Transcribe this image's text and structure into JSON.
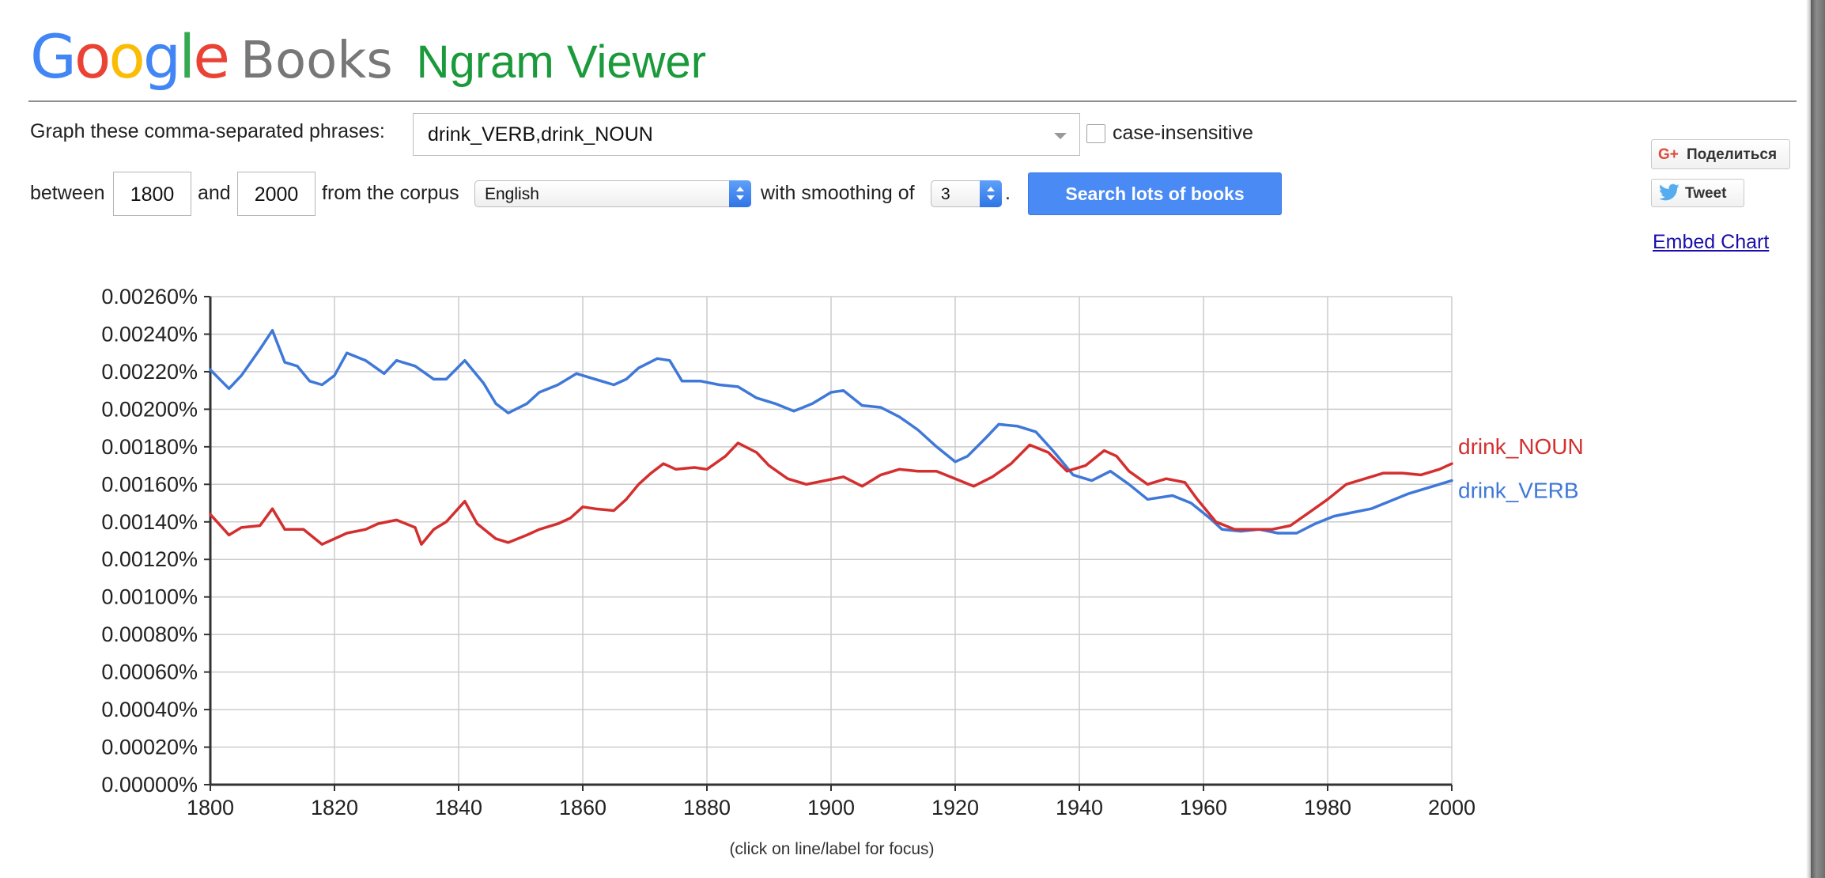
{
  "header": {
    "logo_google_letters": [
      {
        "ch": "G",
        "color": "blue"
      },
      {
        "ch": "o",
        "color": "red"
      },
      {
        "ch": "o",
        "color": "yellow"
      },
      {
        "ch": "g",
        "color": "blue"
      },
      {
        "ch": "l",
        "color": "green"
      },
      {
        "ch": "e",
        "color": "red"
      }
    ],
    "logo_books": "Books",
    "title": "Ngram Viewer"
  },
  "form": {
    "phrases_label": "Graph these comma-separated phrases:",
    "phrases_value": "drink_VERB,drink_NOUN",
    "case_insensitive_label": "case-insensitive",
    "case_insensitive_checked": false,
    "between_label": "between",
    "start_year": "1800",
    "and_label": "and",
    "end_year": "2000",
    "corpus_label": "from the corpus",
    "corpus_value": "English",
    "smoothing_label": "with smoothing of",
    "smoothing_value": "3",
    "period": ".",
    "search_button": "Search lots of books"
  },
  "sidebar": {
    "share_label": "Поделиться",
    "share_icon_text": "G+",
    "tweet_label": "Tweet",
    "embed_link": "Embed Chart"
  },
  "colors": {
    "google_blue": "#4285f4",
    "google_red": "#ea4335",
    "google_yellow": "#fbbc05",
    "google_green": "#34a853",
    "title_green": "#1a9a3a",
    "button_blue": "#4a8af4",
    "series_verb": "#3f78d8",
    "series_noun": "#d32f2f"
  },
  "chart_data": {
    "type": "line",
    "footnote": "(click on line/label for focus)",
    "xlim": [
      1800,
      2000
    ],
    "ylim": [
      0,
      0.0026
    ],
    "y_unit": "%",
    "x_ticks": [
      "1800",
      "1820",
      "1840",
      "1860",
      "1880",
      "1900",
      "1920",
      "1940",
      "1960",
      "1980",
      "2000"
    ],
    "y_ticks": [
      "0.00000%",
      "0.00020%",
      "0.00040%",
      "0.00060%",
      "0.00080%",
      "0.00100%",
      "0.00120%",
      "0.00140%",
      "0.00160%",
      "0.00180%",
      "0.00200%",
      "0.00220%",
      "0.00240%",
      "0.00260%"
    ],
    "grid": true,
    "legend": "line-end labels",
    "series": [
      {
        "name": "drink_VERB",
        "color": "#3f78d8",
        "points": [
          [
            1800,
            0.00221
          ],
          [
            1803,
            0.00211
          ],
          [
            1805,
            0.00218
          ],
          [
            1808,
            0.00232
          ],
          [
            1810,
            0.00242
          ],
          [
            1812,
            0.00225
          ],
          [
            1814,
            0.00223
          ],
          [
            1816,
            0.00215
          ],
          [
            1818,
            0.00213
          ],
          [
            1820,
            0.00218
          ],
          [
            1822,
            0.0023
          ],
          [
            1825,
            0.00226
          ],
          [
            1828,
            0.00219
          ],
          [
            1830,
            0.00226
          ],
          [
            1833,
            0.00223
          ],
          [
            1836,
            0.00216
          ],
          [
            1838,
            0.00216
          ],
          [
            1841,
            0.00226
          ],
          [
            1844,
            0.00214
          ],
          [
            1846,
            0.00203
          ],
          [
            1848,
            0.00198
          ],
          [
            1851,
            0.00203
          ],
          [
            1853,
            0.00209
          ],
          [
            1856,
            0.00213
          ],
          [
            1859,
            0.00219
          ],
          [
            1862,
            0.00216
          ],
          [
            1865,
            0.00213
          ],
          [
            1867,
            0.00216
          ],
          [
            1869,
            0.00222
          ],
          [
            1872,
            0.00227
          ],
          [
            1874,
            0.00226
          ],
          [
            1876,
            0.00215
          ],
          [
            1879,
            0.00215
          ],
          [
            1882,
            0.00213
          ],
          [
            1885,
            0.00212
          ],
          [
            1888,
            0.00206
          ],
          [
            1891,
            0.00203
          ],
          [
            1894,
            0.00199
          ],
          [
            1897,
            0.00203
          ],
          [
            1900,
            0.00209
          ],
          [
            1902,
            0.0021
          ],
          [
            1905,
            0.00202
          ],
          [
            1908,
            0.00201
          ],
          [
            1911,
            0.00196
          ],
          [
            1914,
            0.00189
          ],
          [
            1917,
            0.0018
          ],
          [
            1920,
            0.00172
          ],
          [
            1922,
            0.00175
          ],
          [
            1925,
            0.00185
          ],
          [
            1927,
            0.00192
          ],
          [
            1930,
            0.00191
          ],
          [
            1933,
            0.00188
          ],
          [
            1936,
            0.00177
          ],
          [
            1939,
            0.00165
          ],
          [
            1942,
            0.00162
          ],
          [
            1945,
            0.00167
          ],
          [
            1948,
            0.0016
          ],
          [
            1951,
            0.00152
          ],
          [
            1955,
            0.00154
          ],
          [
            1958,
            0.0015
          ],
          [
            1961,
            0.00142
          ],
          [
            1963,
            0.00136
          ],
          [
            1966,
            0.00135
          ],
          [
            1969,
            0.00136
          ],
          [
            1972,
            0.00134
          ],
          [
            1975,
            0.00134
          ],
          [
            1978,
            0.00139
          ],
          [
            1981,
            0.00143
          ],
          [
            1984,
            0.00145
          ],
          [
            1987,
            0.00147
          ],
          [
            1990,
            0.00151
          ],
          [
            1993,
            0.00155
          ],
          [
            1996,
            0.00158
          ],
          [
            1998,
            0.0016
          ],
          [
            2000,
            0.00162
          ]
        ]
      },
      {
        "name": "drink_NOUN",
        "color": "#d32f2f",
        "points": [
          [
            1800,
            0.00144
          ],
          [
            1803,
            0.00133
          ],
          [
            1805,
            0.00137
          ],
          [
            1808,
            0.00138
          ],
          [
            1810,
            0.00147
          ],
          [
            1812,
            0.00136
          ],
          [
            1815,
            0.00136
          ],
          [
            1818,
            0.00128
          ],
          [
            1820,
            0.00131
          ],
          [
            1822,
            0.00134
          ],
          [
            1825,
            0.00136
          ],
          [
            1827,
            0.00139
          ],
          [
            1830,
            0.00141
          ],
          [
            1833,
            0.00137
          ],
          [
            1834,
            0.00128
          ],
          [
            1836,
            0.00136
          ],
          [
            1838,
            0.0014
          ],
          [
            1841,
            0.00151
          ],
          [
            1843,
            0.00139
          ],
          [
            1846,
            0.00131
          ],
          [
            1848,
            0.00129
          ],
          [
            1851,
            0.00133
          ],
          [
            1853,
            0.00136
          ],
          [
            1856,
            0.00139
          ],
          [
            1858,
            0.00142
          ],
          [
            1860,
            0.00148
          ],
          [
            1862,
            0.00147
          ],
          [
            1865,
            0.00146
          ],
          [
            1867,
            0.00152
          ],
          [
            1869,
            0.0016
          ],
          [
            1871,
            0.00166
          ],
          [
            1873,
            0.00171
          ],
          [
            1875,
            0.00168
          ],
          [
            1878,
            0.00169
          ],
          [
            1880,
            0.00168
          ],
          [
            1883,
            0.00175
          ],
          [
            1885,
            0.00182
          ],
          [
            1888,
            0.00177
          ],
          [
            1890,
            0.0017
          ],
          [
            1893,
            0.00163
          ],
          [
            1896,
            0.0016
          ],
          [
            1899,
            0.00162
          ],
          [
            1902,
            0.00164
          ],
          [
            1905,
            0.00159
          ],
          [
            1908,
            0.00165
          ],
          [
            1911,
            0.00168
          ],
          [
            1914,
            0.00167
          ],
          [
            1917,
            0.00167
          ],
          [
            1920,
            0.00163
          ],
          [
            1923,
            0.00159
          ],
          [
            1926,
            0.00164
          ],
          [
            1929,
            0.00171
          ],
          [
            1932,
            0.00181
          ],
          [
            1935,
            0.00177
          ],
          [
            1938,
            0.00167
          ],
          [
            1941,
            0.0017
          ],
          [
            1944,
            0.00178
          ],
          [
            1946,
            0.00175
          ],
          [
            1948,
            0.00167
          ],
          [
            1951,
            0.0016
          ],
          [
            1954,
            0.00163
          ],
          [
            1957,
            0.00161
          ],
          [
            1959,
            0.00152
          ],
          [
            1962,
            0.0014
          ],
          [
            1965,
            0.00136
          ],
          [
            1968,
            0.00136
          ],
          [
            1971,
            0.00136
          ],
          [
            1974,
            0.00138
          ],
          [
            1977,
            0.00145
          ],
          [
            1980,
            0.00152
          ],
          [
            1983,
            0.0016
          ],
          [
            1986,
            0.00163
          ],
          [
            1989,
            0.00166
          ],
          [
            1992,
            0.00166
          ],
          [
            1995,
            0.00165
          ],
          [
            1998,
            0.00168
          ],
          [
            2000,
            0.00171
          ]
        ]
      }
    ]
  }
}
